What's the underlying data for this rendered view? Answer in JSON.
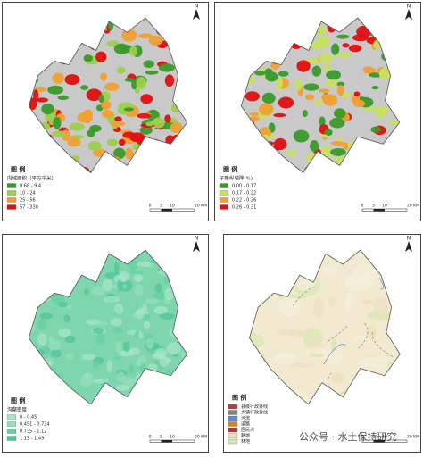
{
  "panels": [
    {
      "north": "N",
      "legend_heading": "图 例",
      "legend_title": "内域面积（平方千米）",
      "fill": "#c9c9c9",
      "patch_colors": [
        "#3a9a2a",
        "#9bd04a",
        "#f0a030",
        "#e01010"
      ],
      "legend_items": [
        {
          "label": "0.68 - 9.4",
          "color": "#3a9a2a"
        },
        {
          "label": "10 - 24",
          "color": "#9bd04a"
        },
        {
          "label": "25 - 56",
          "color": "#f0a030"
        },
        {
          "label": "57 - 338",
          "color": "#e01010"
        }
      ],
      "scale": [
        "0",
        "5",
        "10",
        "20 KM"
      ]
    },
    {
      "north": "N",
      "legend_heading": "图 例",
      "legend_title": "子集纵坡降(%)",
      "fill": "#c9c9c9",
      "patch_colors": [
        "#3a9a2a",
        "#c8e060",
        "#f0a030",
        "#e01010"
      ],
      "legend_items": [
        {
          "label": "0.00 - 0.17",
          "color": "#3a9a2a"
        },
        {
          "label": "0.17 - 0.22",
          "color": "#c8e060"
        },
        {
          "label": "0.22 - 0.26",
          "color": "#f0a030"
        },
        {
          "label": "0.26 - 0.31",
          "color": "#e01010"
        }
      ],
      "scale": [
        "0",
        "5",
        "10",
        "20 KM"
      ]
    },
    {
      "north": "N",
      "legend_heading": "图 例",
      "legend_title": "沟壑密度",
      "fill": "#7fd6ae",
      "patch_colors": [
        "#4cc597",
        "#a8e6c9",
        "#64cfa2",
        "#93dfbb"
      ],
      "legend_items": [
        {
          "label": "0 - 0.45",
          "color": "#a8e6c9"
        },
        {
          "label": "0.451 - 0.734",
          "color": "#93dfbb"
        },
        {
          "label": "0.735 - 1.12",
          "color": "#64cfa2"
        },
        {
          "label": "1.13 - 1.49",
          "color": "#4cc597"
        }
      ],
      "scale": [
        "0",
        "5",
        "10",
        "20 KM"
      ]
    },
    {
      "north": "N",
      "legend_heading": "图 例",
      "legend_title": "",
      "fill": "#f2ead0",
      "patch_colors": [
        "#e8e2b8",
        "#d9e6b0",
        "#f5f0dc",
        "#ece0c4"
      ],
      "legend_items": [
        {
          "label": "县级行政界线",
          "color": "#b04040"
        },
        {
          "label": "乡镇行政界线",
          "color": "#808080"
        },
        {
          "label": "河流",
          "color": "#5b8fd0"
        },
        {
          "label": "道路",
          "color": "#d08030"
        },
        {
          "label": "居民点",
          "color": "#c03030"
        },
        {
          "label": "耕地",
          "color": "#e8e2b8"
        },
        {
          "label": "林地",
          "color": "#d9e6b0"
        }
      ],
      "scale": [
        "0",
        "5",
        "10",
        "20 KM"
      ]
    }
  ],
  "watermark": "公众号 · 水土保持研究"
}
